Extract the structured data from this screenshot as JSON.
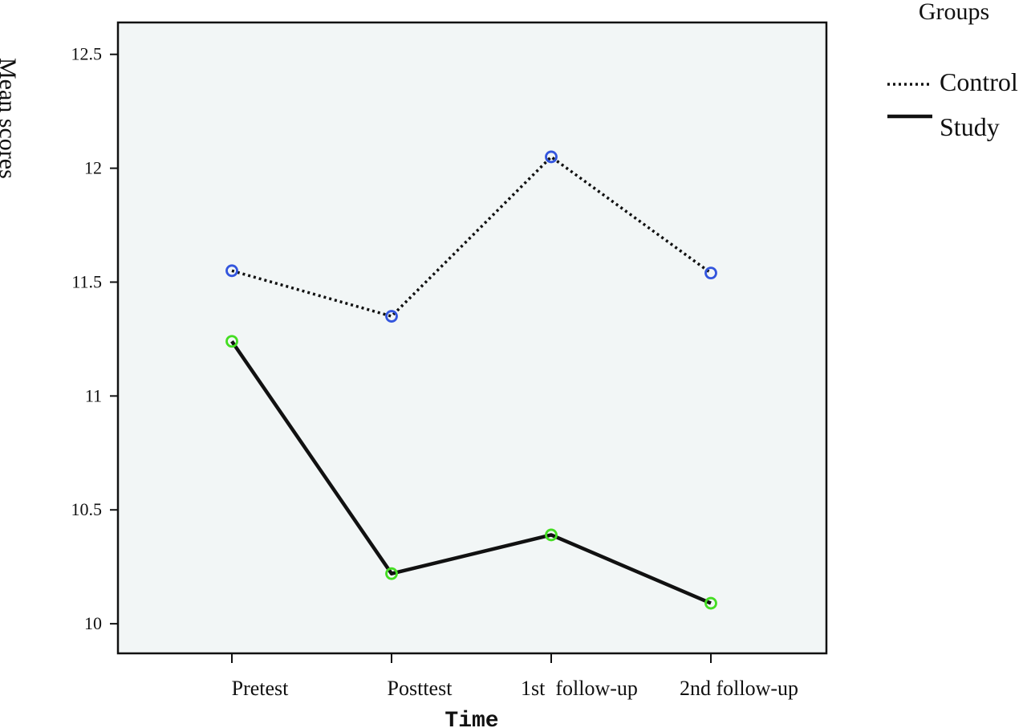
{
  "chart_data": {
    "type": "line",
    "categories": [
      "Pretest",
      "Posttest",
      "1st  follow-up",
      "2nd follow-up"
    ],
    "series": [
      {
        "name": "Control",
        "values": [
          11.55,
          11.35,
          12.05,
          11.54
        ],
        "line_style": "dotted",
        "line_color": "#111111",
        "marker_color": "#3355dd"
      },
      {
        "name": "Study",
        "values": [
          11.24,
          10.22,
          10.39,
          10.09
        ],
        "line_style": "solid",
        "line_color": "#111111",
        "marker_color": "#44dd22"
      }
    ],
    "title": "",
    "xlabel": "Time",
    "ylabel": "Mean scores",
    "ylim": [
      9.87,
      12.64
    ],
    "yticks": [
      10,
      10.5,
      11,
      11.5,
      12,
      12.5
    ],
    "ytick_labels": [
      "10",
      "10.5",
      "11",
      "11.5",
      "12",
      "12.5"
    ],
    "grid": false,
    "legend": {
      "title": "Groups",
      "placement": "right",
      "entries": [
        "Control",
        "Study"
      ]
    },
    "plot_background": "#f2f6f6"
  }
}
